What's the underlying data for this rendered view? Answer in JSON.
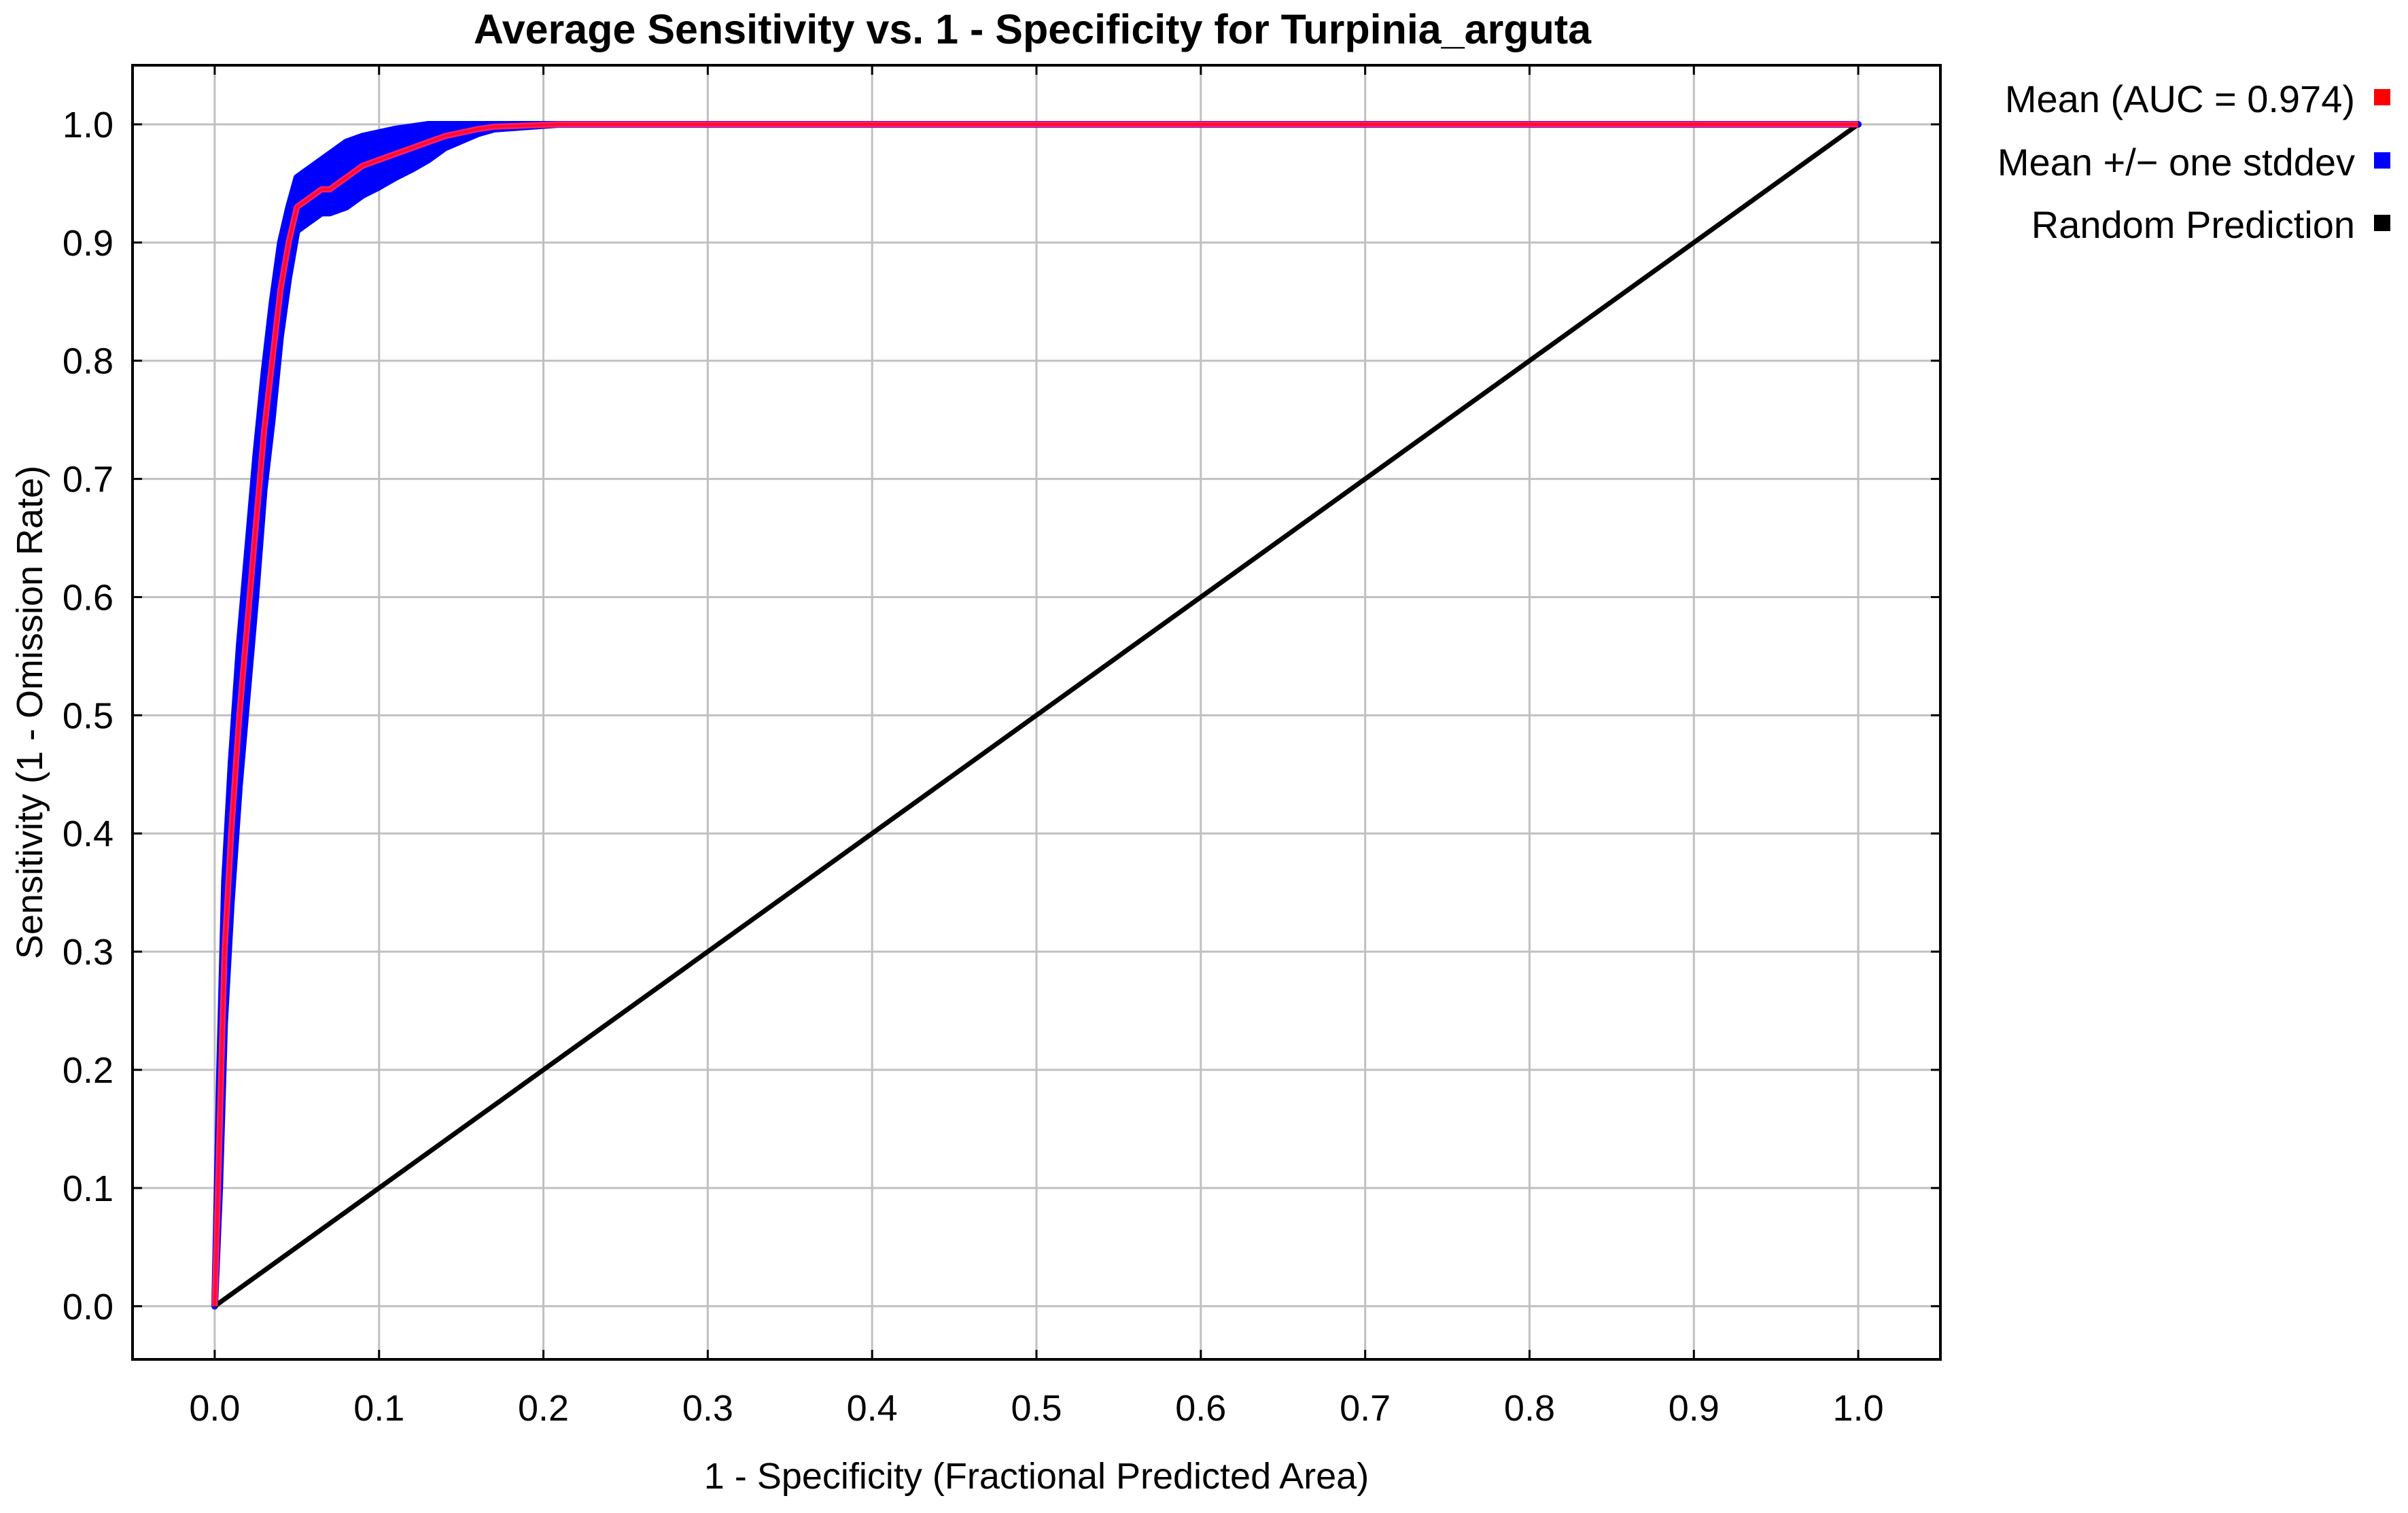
{
  "chart_data": {
    "type": "line",
    "title": "Average Sensitivity vs. 1 - Specificity for Turpinia_arguta",
    "xlabel": "1 - Specificity (Fractional Predicted Area)",
    "ylabel": "Sensitivity (1 - Omission Rate)",
    "xlim": [
      -0.05,
      1.05
    ],
    "ylim": [
      -0.045,
      1.05
    ],
    "x_ticks": [
      "0.0",
      "0.1",
      "0.2",
      "0.3",
      "0.4",
      "0.5",
      "0.6",
      "0.7",
      "0.8",
      "0.9",
      "1.0"
    ],
    "y_ticks": [
      "0.0",
      "0.1",
      "0.2",
      "0.3",
      "0.4",
      "0.5",
      "0.6",
      "0.7",
      "0.8",
      "0.9",
      "1.0"
    ],
    "grid": true,
    "legend_position": "right-top",
    "series": [
      {
        "name": "Mean (AUC = 0.974)",
        "color": "#ff0000",
        "role": "mean",
        "x": [
          0.0,
          0.003,
          0.006,
          0.01,
          0.015,
          0.02,
          0.025,
          0.03,
          0.035,
          0.04,
          0.045,
          0.05,
          0.055,
          0.06,
          0.065,
          0.07,
          0.08,
          0.09,
          0.1,
          0.11,
          0.12,
          0.13,
          0.14,
          0.15,
          0.16,
          0.17,
          0.19,
          0.21,
          0.25,
          0.4,
          0.6,
          0.8,
          1.0
        ],
        "y": [
          0.0,
          0.15,
          0.3,
          0.4,
          0.5,
          0.58,
          0.66,
          0.74,
          0.8,
          0.86,
          0.9,
          0.93,
          0.935,
          0.94,
          0.945,
          0.945,
          0.955,
          0.965,
          0.97,
          0.975,
          0.98,
          0.985,
          0.99,
          0.993,
          0.996,
          0.998,
          0.999,
          1.0,
          1.0,
          1.0,
          1.0,
          1.0,
          1.0
        ]
      },
      {
        "name": "Mean +/− one stddev",
        "color": "#0000ff",
        "role": "band",
        "x": [
          0.0,
          0.003,
          0.006,
          0.01,
          0.015,
          0.02,
          0.025,
          0.03,
          0.035,
          0.04,
          0.045,
          0.05,
          0.055,
          0.06,
          0.065,
          0.07,
          0.08,
          0.09,
          0.1,
          0.11,
          0.12,
          0.13,
          0.14,
          0.15,
          0.16,
          0.17,
          0.19,
          0.21,
          0.25,
          0.4,
          0.6,
          0.8,
          1.0
        ],
        "upper": [
          0.0,
          0.2,
          0.36,
          0.46,
          0.56,
          0.64,
          0.72,
          0.79,
          0.85,
          0.9,
          0.93,
          0.955,
          0.96,
          0.965,
          0.97,
          0.975,
          0.985,
          0.99,
          0.993,
          0.996,
          0.998,
          1.0,
          1.0,
          1.0,
          1.0,
          1.0,
          1.0,
          1.0,
          1.0,
          1.0,
          1.0,
          1.0,
          1.0
        ],
        "lower": [
          0.0,
          0.1,
          0.24,
          0.34,
          0.44,
          0.52,
          0.6,
          0.69,
          0.75,
          0.82,
          0.87,
          0.91,
          0.915,
          0.92,
          0.925,
          0.925,
          0.93,
          0.94,
          0.947,
          0.955,
          0.962,
          0.97,
          0.98,
          0.986,
          0.992,
          0.996,
          0.998,
          1.0,
          1.0,
          1.0,
          1.0,
          1.0,
          1.0
        ]
      },
      {
        "name": "Random Prediction",
        "color": "#000000",
        "role": "reference",
        "x": [
          0.0,
          1.0
        ],
        "y": [
          0.0,
          1.0
        ]
      }
    ]
  }
}
